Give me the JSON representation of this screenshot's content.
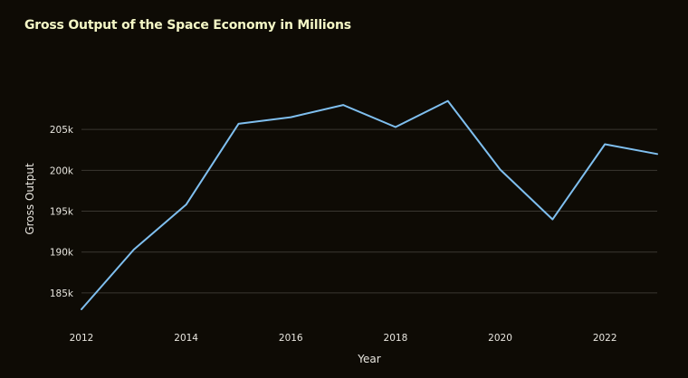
{
  "chart_data": {
    "type": "line",
    "title": "Gross Output of the Space Economy in Millions",
    "xlabel": "Year",
    "ylabel": "Gross Output",
    "x": [
      2012,
      2013,
      2014,
      2015,
      2016,
      2017,
      2018,
      2019,
      2020,
      2021,
      2022,
      2023
    ],
    "series": [
      {
        "values": [
          183000,
          190300,
          195800,
          205700,
          206500,
          208000,
          205300,
          208500,
          200100,
          194000,
          203200,
          202000
        ]
      }
    ],
    "xlim": [
      2012,
      2023
    ],
    "ylim": [
      183000,
      210000
    ],
    "x_ticks": [
      2012,
      2014,
      2016,
      2018,
      2020,
      2022
    ],
    "x_tick_labels": [
      "2012",
      "2014",
      "2016",
      "2018",
      "2020",
      "2022"
    ],
    "y_ticks": [
      185000,
      190000,
      195000,
      200000,
      205000
    ],
    "y_tick_labels": [
      "185k",
      "190k",
      "195k",
      "200k",
      "205k"
    ],
    "grid": "horizontal",
    "line_color": "#7fbfef",
    "background_color": "#0e0b05",
    "title_color": "#f4f7c6"
  }
}
